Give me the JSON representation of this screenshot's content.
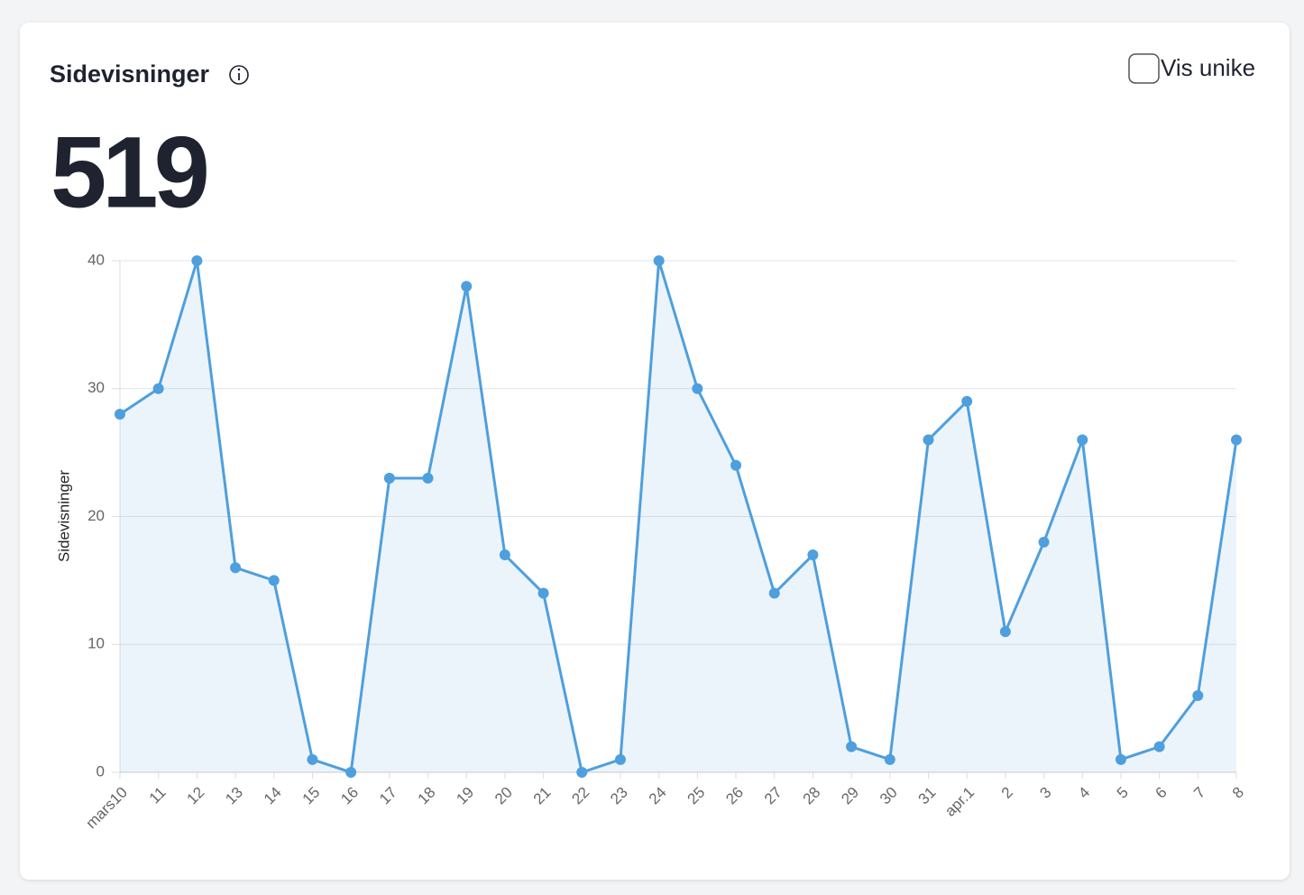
{
  "header": {
    "title": "Sidevisninger",
    "toggle_label": "Vis unike",
    "total": 519
  },
  "chart_data": {
    "type": "line",
    "y_label": "Sidevisninger",
    "categories": [
      "mars10",
      "11",
      "12",
      "13",
      "14",
      "15",
      "16",
      "17",
      "18",
      "19",
      "20",
      "21",
      "22",
      "23",
      "24",
      "25",
      "26",
      "27",
      "28",
      "29",
      "30",
      "31",
      "apr.1",
      "2",
      "3",
      "4",
      "5",
      "6",
      "7",
      "8"
    ],
    "values": [
      28,
      30,
      40,
      16,
      15,
      1,
      0,
      23,
      23,
      38,
      17,
      14,
      0,
      1,
      40,
      30,
      24,
      14,
      17,
      2,
      1,
      26,
      29,
      11,
      18,
      26,
      1,
      2,
      6,
      26
    ],
    "color": "#4e9fde",
    "ylim": [
      0,
      40
    ],
    "yticks": [
      0,
      10,
      20,
      30,
      40
    ],
    "grid": true
  }
}
